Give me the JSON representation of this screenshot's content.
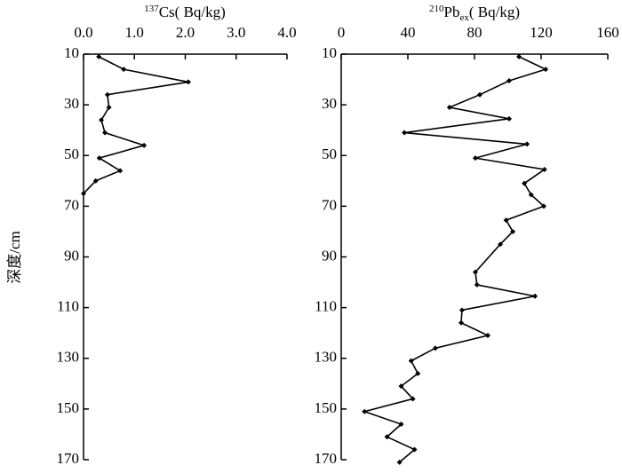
{
  "chart_data": [
    {
      "type": "line",
      "title": {
        "sup": "137",
        "base": "Cs( Bq/kg)"
      },
      "ylabel": "深度/cm",
      "color": "#000000",
      "xlim": [
        0,
        4
      ],
      "xticks": [
        {
          "value": 0,
          "label": "0.0"
        },
        {
          "value": 1,
          "label": "1.0"
        },
        {
          "value": 2,
          "label": "2.0"
        },
        {
          "value": 3,
          "label": "3.0"
        },
        {
          "value": 4,
          "label": "4.0"
        }
      ],
      "ylim": [
        10,
        170
      ],
      "yticks": [
        10,
        30,
        50,
        70,
        90,
        110,
        130,
        150,
        170
      ],
      "depth": [
        11,
        16,
        21,
        26,
        31,
        36,
        41,
        46,
        51,
        56,
        60,
        65
      ],
      "values": [
        0.3,
        0.79,
        2.06,
        0.47,
        0.5,
        0.35,
        0.42,
        1.19,
        0.31,
        0.72,
        0.24,
        0
      ]
    },
    {
      "type": "line",
      "title": {
        "sup": "210",
        "base": "Pb",
        "sub": "ex",
        "unit": "( Bq/kg)"
      },
      "color": "#000000",
      "xlim": [
        0,
        160
      ],
      "xticks": [
        0,
        40,
        80,
        120,
        160
      ],
      "ylim": [
        10,
        170
      ],
      "yticks": [
        10,
        30,
        50,
        70,
        90,
        110,
        130,
        150,
        170
      ],
      "depth": [
        11,
        16,
        20.5,
        26,
        31,
        35.5,
        41,
        45.5,
        51,
        55.5,
        61,
        65.5,
        70,
        75.5,
        80,
        85,
        96,
        101,
        105.5,
        111,
        116,
        121,
        126,
        131,
        136,
        141,
        146,
        151,
        156,
        161,
        166,
        171
      ],
      "values": [
        106.7,
        122.7,
        100.8,
        83.2,
        65,
        100.8,
        37.9,
        111.5,
        80.5,
        122,
        109.9,
        114,
        121.6,
        99,
        103,
        95.5,
        80.5,
        81.5,
        116.3,
        72.5,
        72,
        88,
        56.5,
        42,
        46,
        36,
        43,
        14,
        36,
        27.5,
        44,
        35
      ]
    }
  ]
}
